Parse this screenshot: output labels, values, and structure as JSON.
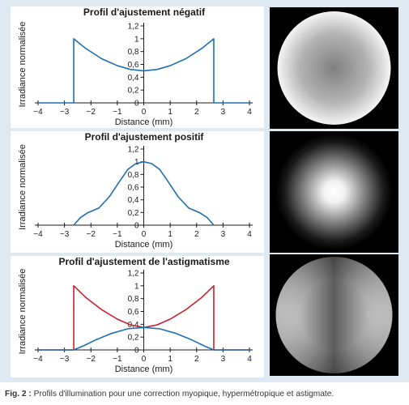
{
  "figure": {
    "caption_label": "Fig. 2 :",
    "caption_text": "Profils d'illumination pour une correction myopique, hypermétropique et astigmate.",
    "background_color": "#dfe9f2"
  },
  "chart_data": [
    {
      "type": "line",
      "title": "Profil d'ajustement négatif",
      "xlabel": "Distance (mm)",
      "ylabel": "Irradiance normalisée",
      "xlim": [
        -4,
        4
      ],
      "ylim": [
        0,
        1.2
      ],
      "xticks": [
        "−4",
        "−3",
        "−2",
        "−1",
        "0",
        "1",
        "2",
        "3",
        "4"
      ],
      "yticks": [
        "0",
        "0,2",
        "0,4",
        "0,6",
        "0,8",
        "1",
        "1,2"
      ],
      "series": [
        {
          "color": "#1f6fb2",
          "x": [
            -4,
            -2.65,
            -2.65,
            -2.2,
            -1.6,
            -1.0,
            -0.5,
            0,
            0.5,
            1.0,
            1.6,
            2.2,
            2.65,
            2.65,
            4
          ],
          "y": [
            0,
            0,
            1.0,
            0.85,
            0.69,
            0.58,
            0.52,
            0.5,
            0.52,
            0.58,
            0.69,
            0.85,
            1.0,
            0,
            0
          ]
        }
      ],
      "image": {
        "pattern": "disk-bright-edge",
        "edge": 1.0,
        "center": 0.5
      }
    },
    {
      "type": "line",
      "title": "Profil d'ajustement positif",
      "xlabel": "Distance (mm)",
      "ylabel": "Irradiance normalisée",
      "xlim": [
        -4,
        4
      ],
      "ylim": [
        0,
        1.2
      ],
      "xticks": [
        "−4",
        "−3",
        "−2",
        "−1",
        "0",
        "1",
        "2",
        "3",
        "4"
      ],
      "yticks": [
        "0",
        "0,2",
        "0,4",
        "0,6",
        "0,8",
        "1",
        "1,2"
      ],
      "series": [
        {
          "color": "#1f6fb2",
          "x": [
            -2.65,
            -2.4,
            -2.1,
            -1.7,
            -1.3,
            -0.9,
            -0.6,
            -0.3,
            0,
            0.3,
            0.6,
            0.9,
            1.3,
            1.7,
            2.1,
            2.4,
            2.65
          ],
          "y": [
            0,
            0.12,
            0.2,
            0.27,
            0.45,
            0.7,
            0.88,
            0.97,
            1.0,
            0.97,
            0.88,
            0.7,
            0.45,
            0.27,
            0.2,
            0.12,
            0
          ]
        }
      ],
      "image": {
        "pattern": "disk-bright-center",
        "edge": 0.0,
        "center": 1.0
      }
    },
    {
      "type": "line",
      "title": "Profil d'ajustement de l'astigmatisme",
      "xlabel": "Distance (mm)",
      "ylabel": "Irradiance normalisée",
      "xlim": [
        -4,
        4
      ],
      "ylim": [
        0,
        1.2
      ],
      "xticks": [
        "−4",
        "−3",
        "−2",
        "−1",
        "0",
        "1",
        "2",
        "3",
        "4"
      ],
      "yticks": [
        "0",
        "0,2",
        "0,4",
        "0,6",
        "0,8",
        "1",
        "1,2"
      ],
      "series": [
        {
          "color": "#c8212f",
          "x": [
            -4,
            -2.65,
            -2.65,
            -2.2,
            -1.6,
            -1.0,
            -0.5,
            0,
            0.5,
            1.0,
            1.6,
            2.2,
            2.65,
            2.65,
            4
          ],
          "y": [
            0,
            0,
            1.0,
            0.82,
            0.63,
            0.48,
            0.39,
            0.35,
            0.39,
            0.48,
            0.63,
            0.82,
            1.0,
            0,
            0
          ]
        },
        {
          "color": "#1f6fb2",
          "x": [
            -4,
            -2.65,
            -2.3,
            -1.8,
            -1.2,
            -0.6,
            0,
            0.6,
            1.2,
            1.8,
            2.3,
            2.65,
            4
          ],
          "y": [
            0,
            0,
            0.06,
            0.16,
            0.26,
            0.33,
            0.35,
            0.33,
            0.26,
            0.16,
            0.06,
            0,
            0
          ]
        }
      ],
      "image": {
        "pattern": "disk-astigmatism",
        "edge": 1.0,
        "center": 0.35
      }
    }
  ]
}
